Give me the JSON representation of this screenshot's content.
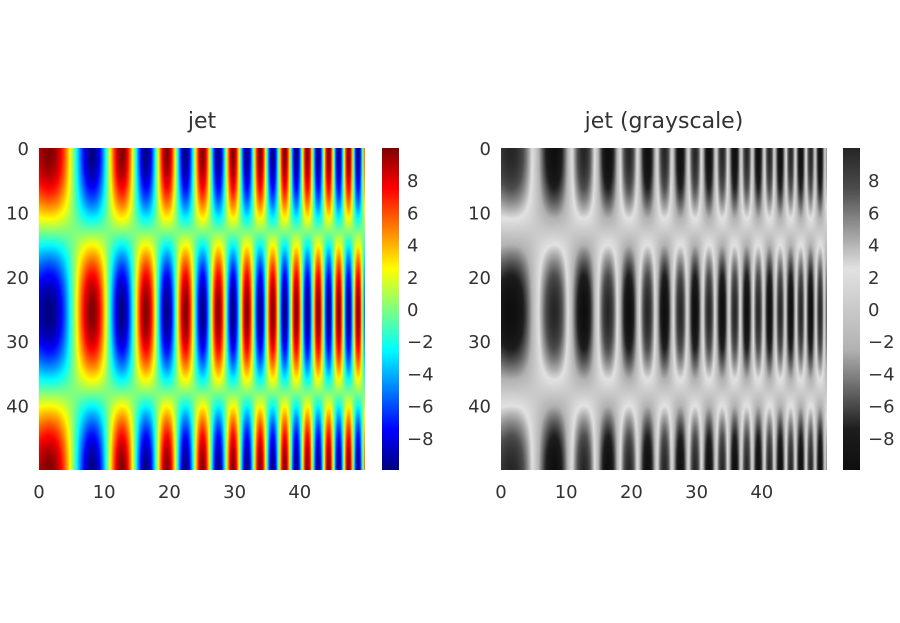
{
  "chart_data": [
    {
      "type": "heatmap",
      "title": "jet",
      "colormap": "jet",
      "grid": false,
      "shape": [
        50,
        50
      ],
      "field": "sin(0.25*(x+8)^2/13) * cos(2*pi*y/50) * 10",
      "xticks": [
        "0",
        "10",
        "20",
        "30",
        "40"
      ],
      "yticks": [
        "0",
        "10",
        "20",
        "30",
        "40"
      ],
      "xlim": [
        0,
        50
      ],
      "ylim": [
        50,
        0
      ],
      "colorbar": {
        "range": [
          -10,
          10
        ],
        "ticks": [
          "8",
          "6",
          "4",
          "2",
          "0",
          "−2",
          "−4",
          "−6",
          "−8"
        ]
      }
    },
    {
      "type": "heatmap",
      "title": "jet (grayscale)",
      "colormap": "jet-grayscale",
      "grid": false,
      "shape": [
        50,
        50
      ],
      "field": "sin(0.25*(x+8)^2/13) * cos(2*pi*y/50) * 10",
      "xticks": [
        "0",
        "10",
        "20",
        "30",
        "40"
      ],
      "yticks": [
        "0",
        "10",
        "20",
        "30",
        "40"
      ],
      "xlim": [
        0,
        50
      ],
      "ylim": [
        50,
        0
      ],
      "colorbar": {
        "range": [
          -10,
          10
        ],
        "ticks": [
          "8",
          "6",
          "4",
          "2",
          "0",
          "−2",
          "−4",
          "−6",
          "−8"
        ]
      }
    }
  ]
}
